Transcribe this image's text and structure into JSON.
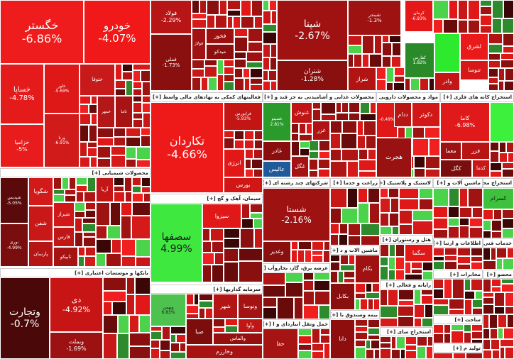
{
  "blocks": [
    {
      "tiles": [
        {
          "name": "خگستر",
          "change": "-6.86%"
        },
        {
          "name": "خودرو",
          "change": "-4.07%"
        },
        {
          "name": "خساپا",
          "change": "-4.78%"
        },
        {
          "name": "خزامیا",
          "change": "-5%"
        },
        {
          "name": "خاور",
          "change": "-5.69%"
        },
        {
          "name": "ورنا",
          "change": "-6.91%"
        },
        {
          "name": "ختوقا"
        },
        {
          "name": "خمهر"
        },
        {
          "name": "تاما"
        }
      ]
    },
    {
      "header": "محصولات شیمیایی [+]",
      "tiles": [
        {
          "name": "شپدیس",
          "change": "-5.05%"
        },
        {
          "name": "نوری",
          "change": "-4.99%"
        },
        {
          "name": "شگویا"
        },
        {
          "name": "شفن"
        },
        {
          "name": "پارسان"
        },
        {
          "name": "شیراز"
        },
        {
          "name": "فارس"
        },
        {
          "name": "تاپیکو"
        },
        {
          "name": "آریا"
        }
      ]
    },
    {
      "header": "بانکها و موسسات اعتباری [+]",
      "tiles": [
        {
          "name": "وتجارت",
          "change": "-0.7%"
        },
        {
          "name": "دی",
          "change": "-4.92%"
        },
        {
          "name": "وبملت",
          "change": "-1.69%"
        }
      ]
    },
    {
      "tiles": [
        {
          "name": "فولاد",
          "change": "-2.29%"
        },
        {
          "name": "فملی",
          "change": "-1.73%"
        },
        {
          "name": "فخوز"
        },
        {
          "name": "میدکو"
        },
        {
          "name": "فولاژ"
        }
      ]
    },
    {
      "header": "فعالیتهای کمکی به نهادهای مالی واسط [+]",
      "tiles": [
        {
          "name": "تکاردان",
          "change": "-4.66%"
        },
        {
          "name": "فرابورس",
          "change": "-5.93%"
        },
        {
          "name": "انرژی"
        },
        {
          "name": "بورس"
        }
      ]
    },
    {
      "header": "سیمان، آهک و گچ [+]",
      "tiles": [
        {
          "name": "سصفها",
          "change": "4.99%"
        },
        {
          "name": "سیزوا"
        }
      ]
    },
    {
      "header": "سرمایه گذاریها [+]",
      "tiles": [
        {
          "name": "وبهمن",
          "change": "6.83%"
        },
        {
          "name": "شهر"
        },
        {
          "name": "ونوسا"
        },
        {
          "name": "وآوا"
        },
        {
          "name": "والماس"
        },
        {
          "name": "صبا"
        },
        {
          "name": "وخارزم"
        }
      ]
    },
    {
      "tiles": [
        {
          "name": "شپنا",
          "change": "-2.67%"
        },
        {
          "name": "شتران",
          "change": "-1.28%"
        },
        {
          "name": "شبندر",
          "change": "-1.3%"
        },
        {
          "name": "شراز"
        }
      ]
    },
    {
      "tiles": [
        {
          "name": "کرمان",
          "change": "-6.93%"
        },
        {
          "name": "کفارس",
          "change": "1.82%"
        },
        {
          "name": "لشرق"
        },
        {
          "name": "وادر"
        },
        {
          "name": "تنوسا"
        }
      ]
    },
    {
      "header": "محصولات غذایی و آشامیدنی به جز قند و [+]",
      "tiles": [
        {
          "name": "غصینو",
          "change": "2.81%"
        },
        {
          "name": "غنوش"
        },
        {
          "name": "غزر"
        },
        {
          "name": "غادر"
        },
        {
          "name": "عالیس"
        },
        {
          "name": "غگل"
        }
      ]
    },
    {
      "header": "مواد و محصولات دارویی [+]",
      "tiles": [
        {
          "change": "-0.49%"
        },
        {
          "name": "دکوثر"
        },
        {
          "name": "ددام"
        },
        {
          "name": "هجرت"
        }
      ]
    },
    {
      "header": "استخراج کانه های فلزی [+]",
      "tiles": [
        {
          "name": "کاما",
          "change": "-6.98%"
        },
        {
          "name": "فزر"
        },
        {
          "name": "معما"
        },
        {
          "name": "کگل"
        },
        {
          "name": "کدما"
        }
      ]
    },
    {
      "header": "شرکتهای چند رشته ای [+]",
      "tiles": [
        {
          "name": "شستا",
          "change": "-2.16%"
        },
        {
          "name": "وغدیر"
        }
      ]
    },
    {
      "header": "زراعت و خدما [+]"
    },
    {
      "header": "لاستیک و پلاستیک [+]"
    },
    {
      "header": "ماشین آلات و [+]"
    },
    {
      "header": "استخراج محص [+]",
      "tiles": [
        {
          "name": "کسرام"
        }
      ]
    },
    {
      "header": "ماشین الات و د [+]",
      "tiles": [
        {
          "name": "بکام"
        },
        {
          "name": "بکابل"
        }
      ]
    },
    {
      "header": "عرضه برق، گاز، بخاروآب [+]"
    },
    {
      "header": "هتل و رستوران [+]",
      "tiles": [
        {
          "name": "سگما"
        }
      ]
    },
    {
      "header": "اطلاعات و ارتبا [+]"
    },
    {
      "header": "خدمات فنی و مهندس [+]"
    },
    {
      "header": "رایانه و فعالی [+]"
    },
    {
      "header": "مخابرات [+]"
    },
    {
      "header": "حمل ونقل انباردای و ا [+]",
      "tiles": [
        {
          "name": "حفا"
        }
      ]
    },
    {
      "header": "بیمه وصندوق با [+]",
      "tiles": [
        {
          "name": "دانا"
        }
      ]
    },
    {
      "header": "استخراج سای [+]"
    },
    {
      "header": "ساخت [+]"
    },
    {
      "header": "محصو [+]"
    },
    {
      "header": "تولید م [+]"
    },
    {}
  ]
}
